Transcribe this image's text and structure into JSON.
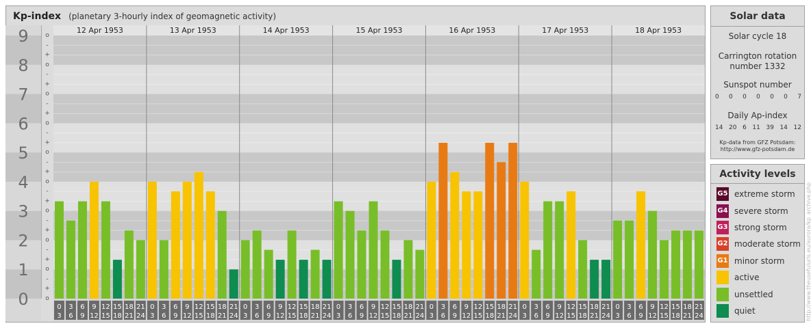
{
  "header": {
    "title": "Kp-index",
    "subtitle": "(planetary 3-hourly index of geomagnetic activity)"
  },
  "chart_data": {
    "type": "bar",
    "y_major_labels": [
      "0",
      "1",
      "2",
      "3",
      "4",
      "5",
      "6",
      "7",
      "8",
      "9"
    ],
    "y_minor_labels": [
      "o",
      "+",
      "-"
    ],
    "ylim": [
      0,
      9
    ],
    "days": [
      "12 Apr 1953",
      "13 Apr 1953",
      "14 Apr 1953",
      "15 Apr 1953",
      "16 Apr 1953",
      "17 Apr 1953",
      "18 Apr 1953"
    ],
    "x_tick_top": [
      "0",
      "3",
      "6",
      "9",
      "12",
      "15",
      "18",
      "21"
    ],
    "x_tick_bottom": [
      "3",
      "6",
      "9",
      "12",
      "15",
      "18",
      "21",
      "24"
    ],
    "values": [
      [
        3.33,
        2.67,
        3.33,
        4.0,
        3.33,
        1.33,
        2.33,
        2.0
      ],
      [
        4.0,
        2.0,
        3.67,
        4.0,
        4.33,
        3.67,
        3.0,
        1.0
      ],
      [
        2.0,
        2.33,
        1.67,
        1.33,
        2.33,
        1.33,
        1.67,
        1.33
      ],
      [
        3.33,
        3.0,
        2.33,
        3.33,
        2.33,
        1.33,
        2.0,
        1.67
      ],
      [
        4.0,
        5.33,
        4.33,
        3.67,
        3.67,
        5.33,
        4.67,
        5.33
      ],
      [
        4.0,
        1.67,
        3.33,
        3.33,
        3.67,
        2.0,
        1.33,
        1.33
      ],
      [
        2.67,
        2.67,
        3.67,
        3.0,
        2.0,
        2.33,
        2.33,
        2.33
      ]
    ],
    "grid": true
  },
  "colors": {
    "quiet": "#0f8c50",
    "unsettled": "#78be28",
    "active": "#f8c300",
    "minor_storm": "#e87a14",
    "moderate_storm": "#d8402a",
    "strong_storm": "#c0205a",
    "severe_storm": "#8a1050",
    "extreme_storm": "#5a0a2a"
  },
  "solar": {
    "title": "Solar data",
    "cycle": "Solar cycle 18",
    "carrington_line1": "Carrington rotation",
    "carrington_line2": "number 1332",
    "sunspot_label": "Sunspot number",
    "sunspot_values": [
      "0",
      "0",
      "0",
      "0",
      "0",
      "0",
      "7"
    ],
    "ap_label": "Daily Ap-index",
    "ap_values": [
      "14",
      "20",
      "6",
      "11",
      "39",
      "14",
      "12"
    ],
    "source_line1": "Kp-data from GFZ Potsdam:",
    "source_line2": "http://www.gfz-potsdam.de"
  },
  "activity": {
    "title": "Activity levels",
    "levels": [
      {
        "code": "G5",
        "label": "extreme storm",
        "color": "#5a0a2a"
      },
      {
        "code": "G4",
        "label": "severe storm",
        "color": "#8a1050"
      },
      {
        "code": "G3",
        "label": "strong storm",
        "color": "#c0205a"
      },
      {
        "code": "G2",
        "label": "moderate storm",
        "color": "#d8402a"
      },
      {
        "code": "G1",
        "label": "minor storm",
        "color": "#e87a14"
      },
      {
        "code": "",
        "label": "active",
        "color": "#f8c300"
      },
      {
        "code": "",
        "label": "unsettled",
        "color": "#78be28"
      },
      {
        "code": "",
        "label": "quiet",
        "color": "#0f8c50"
      }
    ]
  },
  "credit": "http://www.theusefulurls.eu/aurora/kp_archive.php"
}
